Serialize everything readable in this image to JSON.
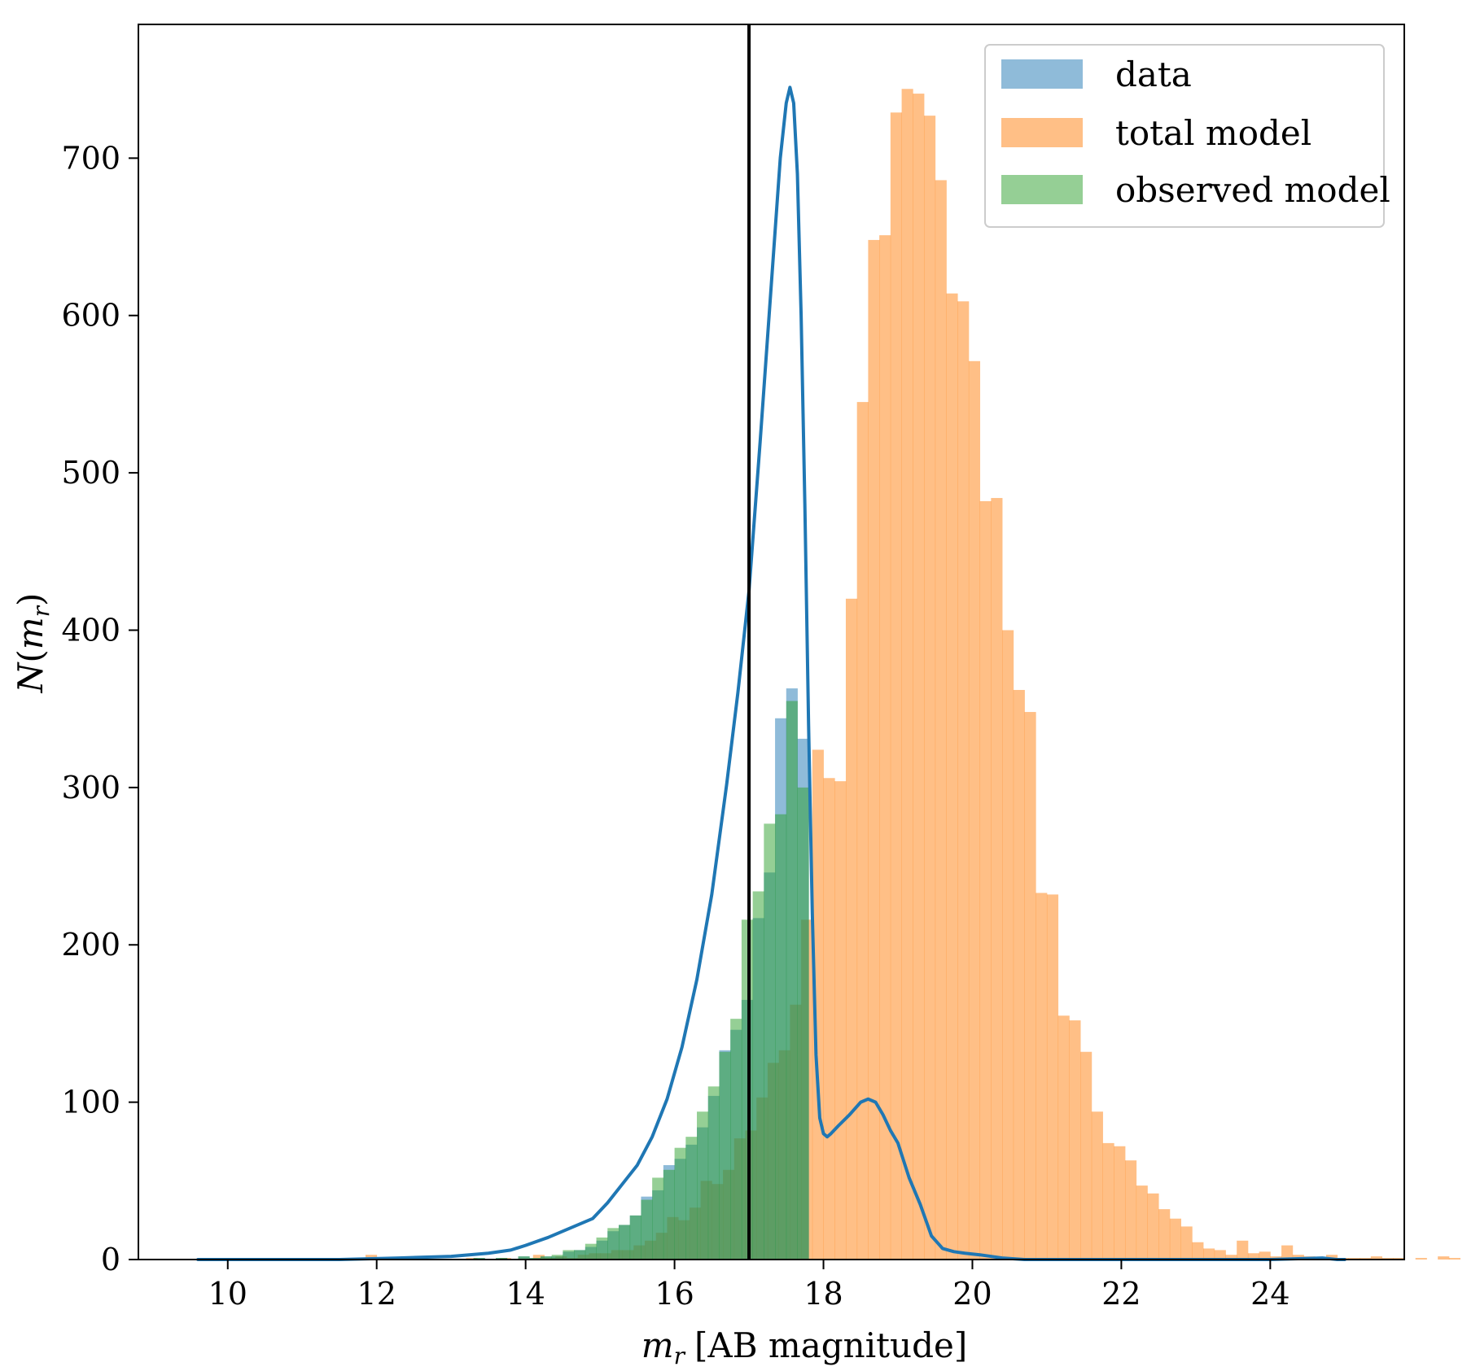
{
  "chart_data": {
    "type": "bar",
    "xlabel_var": "m",
    "xlabel_sub": "r",
    "xlabel_unit": "[AB magnitude]",
    "ylabel_var": "N",
    "ylabel_sub": "r",
    "xlim": [
      8.8,
      25.8
    ],
    "ylim": [
      0,
      785
    ],
    "xticks": [
      10,
      12,
      14,
      16,
      18,
      20,
      22,
      24
    ],
    "yticks": [
      0,
      100,
      200,
      300,
      400,
      500,
      600,
      700
    ],
    "grid": false,
    "legend_position": "top-right",
    "cutoff_line_x": 17.0,
    "bin_width": 0.15,
    "colors": {
      "data": "#1f77b4",
      "total_model": "#ff7f0e",
      "observed_model": "#2ca02c",
      "kde": "#1f77b4",
      "cutoff": "#000000"
    },
    "legend": [
      {
        "key": "data",
        "label": "data"
      },
      {
        "key": "total_model",
        "label": "total model"
      },
      {
        "key": "observed_model",
        "label": "observed model"
      }
    ],
    "series": [
      {
        "name": "total model",
        "key": "total_model",
        "x_start": 11.85,
        "values": [
          3,
          1,
          0,
          0,
          0,
          0,
          0,
          0,
          0,
          1,
          0,
          0,
          1,
          0,
          0,
          3,
          1,
          2,
          1,
          3,
          4,
          4,
          6,
          6,
          9,
          12,
          17,
          27,
          25,
          33,
          50,
          48,
          57,
          77,
          82,
          103,
          125,
          133,
          162,
          216,
          324,
          306,
          304,
          420,
          545,
          648,
          651,
          729,
          744,
          741,
          727,
          686,
          614,
          609,
          571,
          482,
          484,
          400,
          362,
          348,
          233,
          232,
          155,
          152,
          132,
          94,
          74,
          72,
          63,
          47,
          42,
          32,
          26,
          21,
          11,
          7,
          6,
          3,
          12,
          4,
          5,
          2,
          9,
          3,
          2,
          1,
          3,
          1,
          1,
          1,
          2,
          1,
          1,
          0,
          1,
          0,
          2,
          1
        ]
      },
      {
        "name": "data",
        "key": "data",
        "x_start": 13.0,
        "values": [
          0,
          0,
          1,
          0,
          1,
          0,
          2,
          1,
          2,
          2,
          5,
          6,
          8,
          12,
          18,
          22,
          28,
          40,
          44,
          60,
          64,
          73,
          84,
          104,
          133,
          146,
          165,
          217,
          246,
          344,
          363,
          331
        ]
      },
      {
        "name": "observed model",
        "key": "observed_model",
        "x_start": 13.0,
        "values": [
          0,
          0,
          1,
          0,
          1,
          0,
          2,
          1,
          2,
          3,
          6,
          6,
          10,
          14,
          20,
          22,
          28,
          38,
          52,
          57,
          71,
          78,
          94,
          110,
          132,
          153,
          216,
          234,
          277,
          283,
          355,
          300
        ]
      },
      {
        "name": "kde",
        "key": "kde",
        "x": [
          9.6,
          10.5,
          11.5,
          12.3,
          13.0,
          13.5,
          13.8,
          14.0,
          14.3,
          14.6,
          14.9,
          15.1,
          15.3,
          15.5,
          15.7,
          15.9,
          16.1,
          16.3,
          16.5,
          16.7,
          16.85,
          17.0,
          17.15,
          17.3,
          17.42,
          17.5,
          17.55,
          17.6,
          17.65,
          17.7,
          17.75,
          17.8,
          17.85,
          17.9,
          17.95,
          18.0,
          18.05,
          18.1,
          18.2,
          18.35,
          18.5,
          18.6,
          18.7,
          18.8,
          18.9,
          19.0,
          19.15,
          19.3,
          19.45,
          19.6,
          19.75,
          19.9,
          20.1,
          20.4,
          20.7,
          21.2,
          22.0,
          23.0,
          24.0,
          24.7,
          24.9,
          25.0
        ],
        "values": [
          0,
          0,
          0,
          1,
          2,
          4,
          6,
          9,
          14,
          20,
          26,
          36,
          48,
          60,
          78,
          102,
          135,
          178,
          232,
          302,
          360,
          425,
          520,
          620,
          700,
          735,
          745,
          735,
          690,
          600,
          480,
          340,
          220,
          130,
          90,
          80,
          78,
          80,
          85,
          92,
          100,
          102,
          100,
          92,
          82,
          74,
          52,
          35,
          15,
          7,
          5,
          4,
          3,
          1,
          0,
          0,
          0,
          0,
          0,
          1,
          0,
          0
        ]
      }
    ]
  }
}
